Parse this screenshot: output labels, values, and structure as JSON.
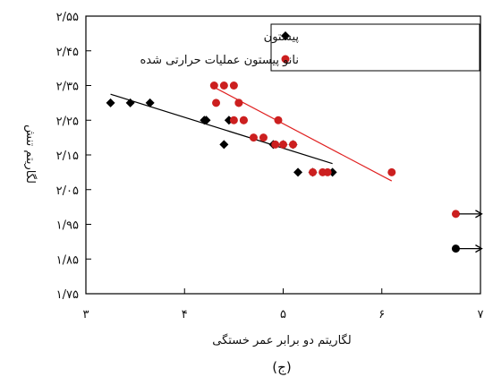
{
  "chart_data": {
    "type": "scatter",
    "xlabel": "لگاریتم دو برابر عمر خستگی",
    "ylabel": "لگاریتم تنش",
    "caption": "(ج)",
    "xlim": [
      3,
      7
    ],
    "ylim": [
      1.75,
      2.55
    ],
    "xticks": [
      3,
      4,
      5,
      6,
      7
    ],
    "xtick_labels": [
      "۳",
      "۴",
      "۵",
      "۶",
      "۷"
    ],
    "yticks": [
      1.75,
      1.85,
      1.95,
      2.05,
      2.15,
      2.25,
      2.35,
      2.45,
      2.55
    ],
    "ytick_labels": [
      "۱/۷۵",
      "۱/۸۵",
      "۱/۹۵",
      "۲/۰۵",
      "۲/۱۵",
      "۲/۲۵",
      "۲/۳۵",
      "۲/۴۵",
      "۲/۵۵"
    ],
    "grid": false,
    "legend_position": "top-right",
    "series": [
      {
        "name": "پیستون",
        "marker": "diamond",
        "color": "#000000",
        "x": [
          3.25,
          3.45,
          3.65,
          4.2,
          4.22,
          4.4,
          4.45,
          4.9,
          5.0,
          5.1,
          5.15,
          5.3,
          5.5
        ],
        "y": [
          2.3,
          2.3,
          2.3,
          2.25,
          2.25,
          2.18,
          2.25,
          2.18,
          2.18,
          2.18,
          2.1,
          2.1,
          2.1
        ],
        "trend": {
          "x": [
            3.25,
            5.5
          ],
          "y": [
            2.325,
            2.125
          ]
        },
        "runout": {
          "x": 6.75,
          "y": 1.88,
          "arrow": "→"
        }
      },
      {
        "name": "نانو پیستون عملیات حرارتی شده",
        "marker": "circle",
        "color": "#cc1f1f",
        "x": [
          4.3,
          4.32,
          4.4,
          4.5,
          4.5,
          4.55,
          4.55,
          4.6,
          4.6,
          4.7,
          4.8,
          4.92,
          4.95,
          5.0,
          5.1,
          5.3,
          5.4,
          5.45,
          6.1
        ],
        "y": [
          2.35,
          2.3,
          2.35,
          2.25,
          2.35,
          2.3,
          2.3,
          2.25,
          2.25,
          2.2,
          2.2,
          2.18,
          2.25,
          2.18,
          2.18,
          2.1,
          2.1,
          2.1,
          2.1
        ],
        "trend": {
          "x": [
            4.3,
            6.1
          ],
          "y": [
            2.345,
            2.075
          ]
        },
        "runout": {
          "x": 6.75,
          "y": 1.98,
          "arrow": "→"
        }
      }
    ]
  }
}
